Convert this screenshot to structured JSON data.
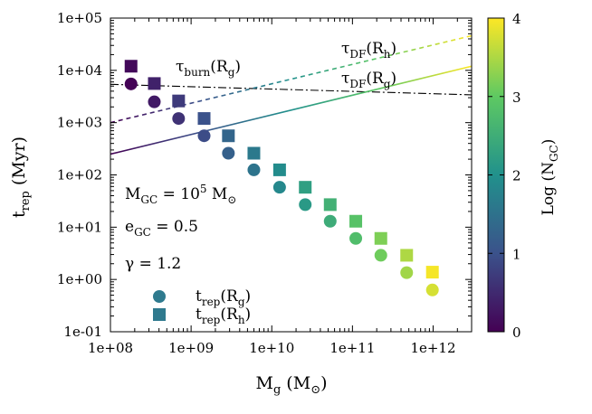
{
  "chart_data": {
    "type": "scatter",
    "x_scale": "log",
    "y_scale": "log",
    "xlim": [
      100000000.0,
      3000000000000.0
    ],
    "ylim": [
      0.1,
      100000.0
    ],
    "x_ticks": [
      100000000.0,
      1000000000.0,
      10000000000.0,
      100000000000.0,
      1000000000000.0
    ],
    "x_tick_labels": [
      "1e+08",
      "1e+09",
      "1e+10",
      "1e+11",
      "1e+12"
    ],
    "y_ticks": [
      0.1,
      1,
      10,
      100,
      1000,
      10000,
      100000
    ],
    "y_tick_labels": [
      "1e-01",
      "1e+00",
      "1e+01",
      "1e+02",
      "1e+03",
      "1e+04",
      "1e+05"
    ],
    "xlabel": {
      "base": "M",
      "sub": "g",
      "unit_open": " (M",
      "unit_sub": "⊙",
      "unit_close": ")"
    },
    "ylabel": {
      "base": "t",
      "sub": "rep",
      "unit": " (Myr)"
    },
    "colorbar": {
      "label": {
        "prefix": "Log (N",
        "sub": "GC",
        "suffix": ")"
      },
      "range": [
        0,
        4
      ],
      "ticks": [
        0,
        1,
        2,
        3,
        4
      ],
      "tick_labels": [
        "0",
        "1",
        "2",
        "3",
        "4"
      ],
      "stops": [
        "#440154",
        "#3b528b",
        "#21918c",
        "#5ec962",
        "#fde725"
      ]
    },
    "series": [
      {
        "name": "t_rep(R_g)",
        "marker": "circle",
        "x": [
          180000000.0,
          350000000.0,
          700000000.0,
          1450000000.0,
          2900000000.0,
          6000000000.0,
          12500000000.0,
          26000000000.0,
          53000000000.0,
          110000000000.0,
          225000000000.0,
          470000000000.0,
          980000000000.0
        ],
        "y": [
          5500,
          2500,
          1200,
          560,
          260,
          125,
          58,
          27,
          13,
          6.1,
          2.9,
          1.35,
          0.63
        ],
        "log_ngc": [
          0.03,
          0.3,
          0.6,
          0.92,
          1.22,
          1.52,
          1.85,
          2.15,
          2.47,
          2.78,
          3.1,
          3.42,
          3.75
        ]
      },
      {
        "name": "t_rep(R_h)",
        "marker": "square",
        "x": [
          180000000.0,
          350000000.0,
          700000000.0,
          1450000000.0,
          2900000000.0,
          6000000000.0,
          12500000000.0,
          26000000000.0,
          53000000000.0,
          110000000000.0,
          225000000000.0,
          470000000000.0,
          980000000000.0
        ],
        "y": [
          12000,
          5600,
          2600,
          1200,
          560,
          260,
          125,
          58,
          27,
          13,
          6.1,
          2.9,
          1.38
        ],
        "log_ngc": [
          0.1,
          0.4,
          0.7,
          1.0,
          1.3,
          1.62,
          1.92,
          2.25,
          2.55,
          2.88,
          3.2,
          3.5,
          3.95
        ]
      }
    ],
    "lines": [
      {
        "label": {
          "base": "τ",
          "sub": "burn",
          "suffix_open": "(R",
          "suffix_sub": "g",
          "suffix_close": ")"
        },
        "style": "dashdot",
        "color": "#000000",
        "x": [
          100000000.0,
          3000000000000.0
        ],
        "y": [
          5400,
          3400
        ]
      },
      {
        "label": {
          "base": "τ",
          "sub": "DF",
          "suffix_open": "(R",
          "suffix_sub": "h",
          "suffix_close": ")"
        },
        "style": "dashed",
        "gradient": true,
        "x": [
          100000000.0,
          3000000000000.0
        ],
        "y": [
          1000,
          46000
        ]
      },
      {
        "label": {
          "base": "τ",
          "sub": "DF",
          "suffix_open": "(R",
          "suffix_sub": "g",
          "suffix_close": ")"
        },
        "style": "solid",
        "gradient": true,
        "x": [
          100000000.0,
          3000000000000.0
        ],
        "y": [
          250,
          12000
        ]
      }
    ],
    "annotations": {
      "mgc": {
        "base": "M",
        "sub": "GC",
        "eq": " = 10",
        "sup": "5",
        "unit": " M",
        "unit_sub": "⊙"
      },
      "egc": {
        "base": "e",
        "sub": "GC",
        "eq": " = 0.5"
      },
      "gamma": "γ = 1.2"
    },
    "legend": {
      "placement": "bottom-left",
      "entries": [
        {
          "base": "t",
          "sub": "rep",
          "open": "(R",
          "inner_sub": "g",
          "close": ")",
          "marker": "circle"
        },
        {
          "base": "t",
          "sub": "rep",
          "open": "(R",
          "inner_sub": "h",
          "close": ")",
          "marker": "square"
        }
      ]
    }
  }
}
